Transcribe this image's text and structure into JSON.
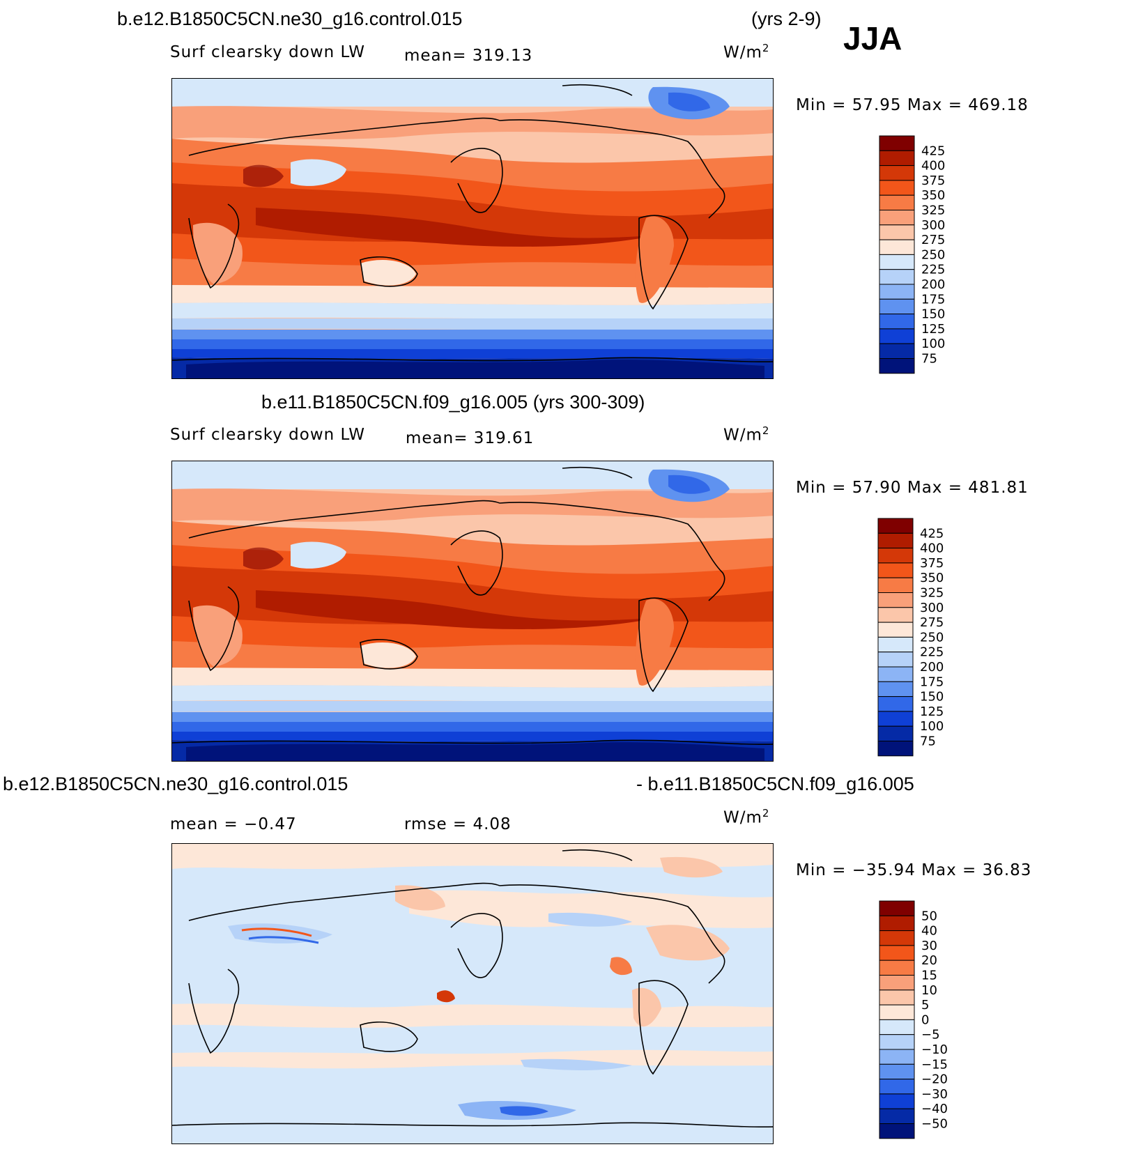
{
  "header": {
    "case1": "b.e12.B1850C5CN.ne30_g16.control.015",
    "years1": "(yrs 2-9)",
    "season": "JJA",
    "case2": "b.e11.B1850C5CN.f09_g16.005 (yrs 300-309)",
    "diff_left": "b.e12.B1850C5CN.ne30_g16.control.015",
    "diff_right": "- b.e11.B1850C5CN.f09_g16.005"
  },
  "panels": [
    {
      "variable": "Surf clearsky down LW",
      "stat": "mean=  319.13",
      "units_base": "W/m",
      "units_exp": "2",
      "minmax": "Min  =   57.95  Max  =  469.18",
      "colorbar": {
        "labels": [
          "425",
          "400",
          "375",
          "350",
          "325",
          "300",
          "275",
          "250",
          "225",
          "200",
          "175",
          "150",
          "125",
          "100",
          "75"
        ],
        "colors": [
          "#7f0000",
          "#b01c00",
          "#d43808",
          "#f2561a",
          "#f77b45",
          "#f9a07a",
          "#fbc6aa",
          "#fde7d8",
          "#d6e8fa",
          "#b6d2f8",
          "#8cb4f5",
          "#5f92f0",
          "#3168e8",
          "#0f40d6",
          "#052aa6",
          "#00137a"
        ]
      }
    },
    {
      "variable": "Surf clearsky down LW",
      "stat": "mean=  319.61",
      "units_base": "W/m",
      "units_exp": "2",
      "minmax": "Min  =   57.90  Max  =  481.81",
      "colorbar": {
        "labels": [
          "425",
          "400",
          "375",
          "350",
          "325",
          "300",
          "275",
          "250",
          "225",
          "200",
          "175",
          "150",
          "125",
          "100",
          "75"
        ],
        "colors": [
          "#7f0000",
          "#b01c00",
          "#d43808",
          "#f2561a",
          "#f77b45",
          "#f9a07a",
          "#fbc6aa",
          "#fde7d8",
          "#d6e8fa",
          "#b6d2f8",
          "#8cb4f5",
          "#5f92f0",
          "#3168e8",
          "#0f40d6",
          "#052aa6",
          "#00137a"
        ]
      }
    },
    {
      "stat_mean": "mean  =   −0.47",
      "stat_rmse": "rmse  =     4.08",
      "units_base": "W/m",
      "units_exp": "2",
      "minmax": "Min  = −35.94  Max  =   36.83",
      "colorbar": {
        "labels": [
          "50",
          "40",
          "30",
          "20",
          "15",
          "10",
          "5",
          "0",
          "−5",
          "−10",
          "−15",
          "−20",
          "−30",
          "−40",
          "−50"
        ],
        "colors": [
          "#7f0000",
          "#b01c00",
          "#d43808",
          "#f2561a",
          "#f77b45",
          "#f9a07a",
          "#fbc6aa",
          "#fde7d8",
          "#d6e8fa",
          "#b6d2f8",
          "#8cb4f5",
          "#5f92f0",
          "#3168e8",
          "#0f40d6",
          "#052aa6",
          "#00137a"
        ]
      }
    }
  ]
}
